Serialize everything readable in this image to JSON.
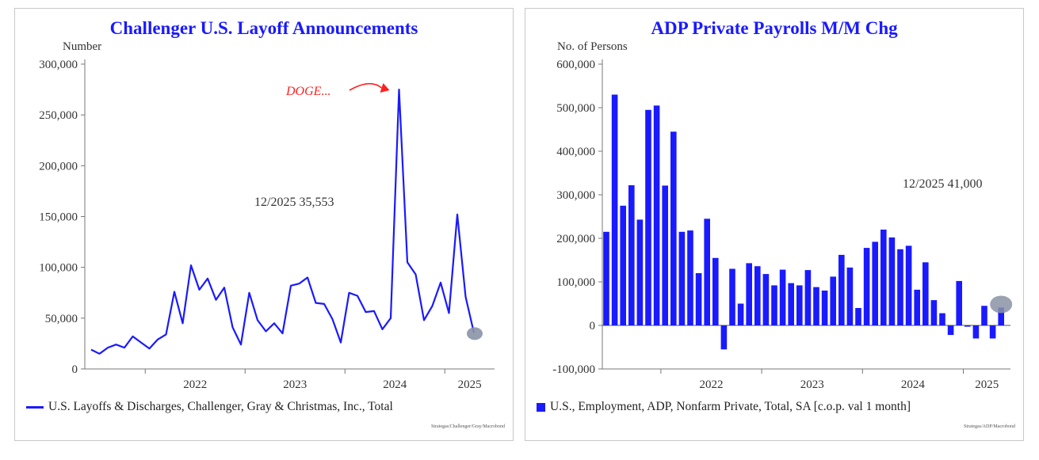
{
  "colors": {
    "series": "#1a1aff",
    "marker": "#8a93a6",
    "annotation_red": "#ff2020",
    "axis": "#777777"
  },
  "chart_data": [
    {
      "type": "line",
      "title": "Challenger U.S. Layoff Announcements",
      "ylabel": "Number",
      "xlabel": "",
      "ylim": [
        0,
        300000
      ],
      "yticks": [
        0,
        50000,
        100000,
        150000,
        200000,
        250000,
        300000
      ],
      "ytick_labels": [
        "0",
        "50,000",
        "100,000",
        "150,000",
        "200,000",
        "250,000",
        "300,000"
      ],
      "x_start": "2021-06",
      "x_end": "2025-12",
      "year_ticks": [
        "2022",
        "2023",
        "2024",
        "2025"
      ],
      "series": [
        {
          "name": "U.S. Layoffs & Discharges, Challenger, Gray & Christmas, Inc., Total",
          "values": [
            19000,
            15000,
            21000,
            24000,
            21000,
            32000,
            26000,
            20000,
            29000,
            34000,
            76000,
            45000,
            102000,
            78000,
            89000,
            68000,
            80000,
            41000,
            24000,
            75000,
            48000,
            37000,
            45000,
            35000,
            82000,
            84000,
            90000,
            65000,
            64000,
            49000,
            26000,
            75000,
            72000,
            56000,
            57000,
            39000,
            50000,
            275000,
            105000,
            93000,
            48000,
            62000,
            85000,
            55000,
            152000,
            71000,
            35553
          ]
        }
      ],
      "annotations": {
        "last_value": "12/2025 35,553",
        "event": "DOGE..."
      },
      "source": "Strategas/Challenger/Gray/Macrobond"
    },
    {
      "type": "bar",
      "title": "ADP Private Payrolls M/M Chg",
      "ylabel": "No. of Persons",
      "xlabel": "",
      "ylim": [
        -100000,
        600000
      ],
      "yticks": [
        -100000,
        0,
        100000,
        200000,
        300000,
        400000,
        500000,
        600000
      ],
      "ytick_labels": [
        "-100,000",
        "0",
        "100,000",
        "200,000",
        "300,000",
        "400,000",
        "500,000",
        "600,000"
      ],
      "x_start": "2021-06",
      "x_end": "2025-12",
      "year_ticks": [
        "2022",
        "2023",
        "2024",
        "2025"
      ],
      "series": [
        {
          "name": "U.S., Employment, ADP, Nonfarm Private, Total, SA [c.o.p. val 1 month]",
          "values": [
            215000,
            530000,
            275000,
            322000,
            243000,
            495000,
            505000,
            321000,
            445000,
            215000,
            218000,
            120000,
            245000,
            155000,
            -55000,
            130000,
            50000,
            143000,
            136000,
            118000,
            92000,
            128000,
            97000,
            92000,
            127000,
            88000,
            80000,
            112000,
            162000,
            133000,
            40000,
            178000,
            192000,
            220000,
            202000,
            175000,
            183000,
            82000,
            145000,
            58000,
            28000,
            -22000,
            102000,
            -3000,
            -30000,
            45000,
            -30000,
            41000
          ]
        }
      ],
      "annotations": {
        "last_value": "12/2025 41,000"
      },
      "source": "Strategas/ADP/Macrobond"
    }
  ]
}
